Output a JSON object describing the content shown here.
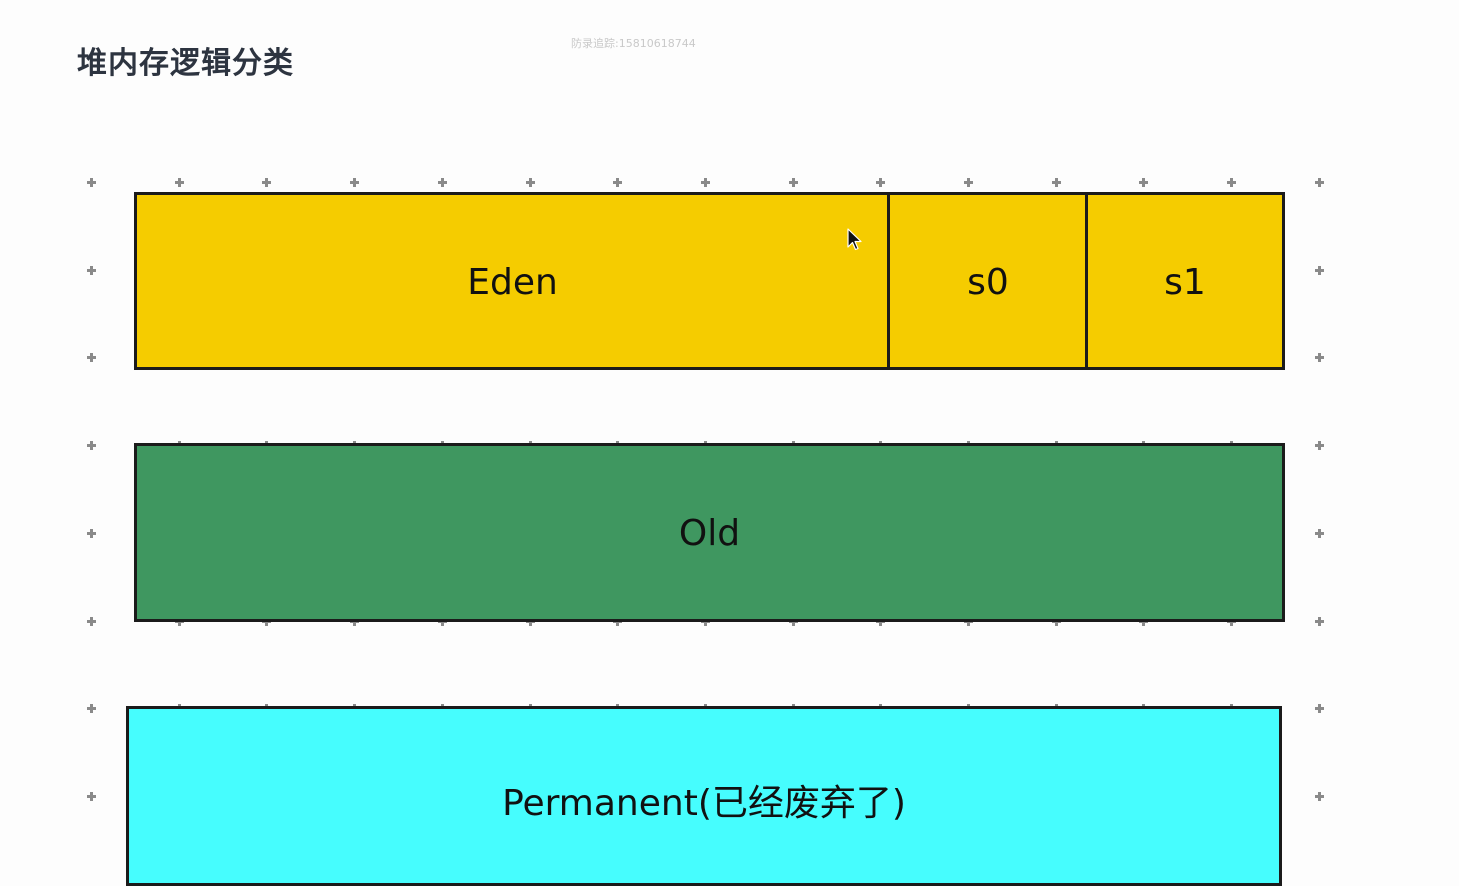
{
  "page": {
    "title": "堆内存逻辑分类",
    "watermark": "防录追踪:15810618744"
  },
  "diagram": {
    "young": {
      "eden": "Eden",
      "s0": "s0",
      "s1": "s1",
      "color": "#f5cc00"
    },
    "old": {
      "label": "Old",
      "color": "#3f9760"
    },
    "permanent": {
      "label": "Permanent(已经废弃了)",
      "color": "#46fdfe"
    },
    "grid_color": "#8a8a8a"
  }
}
